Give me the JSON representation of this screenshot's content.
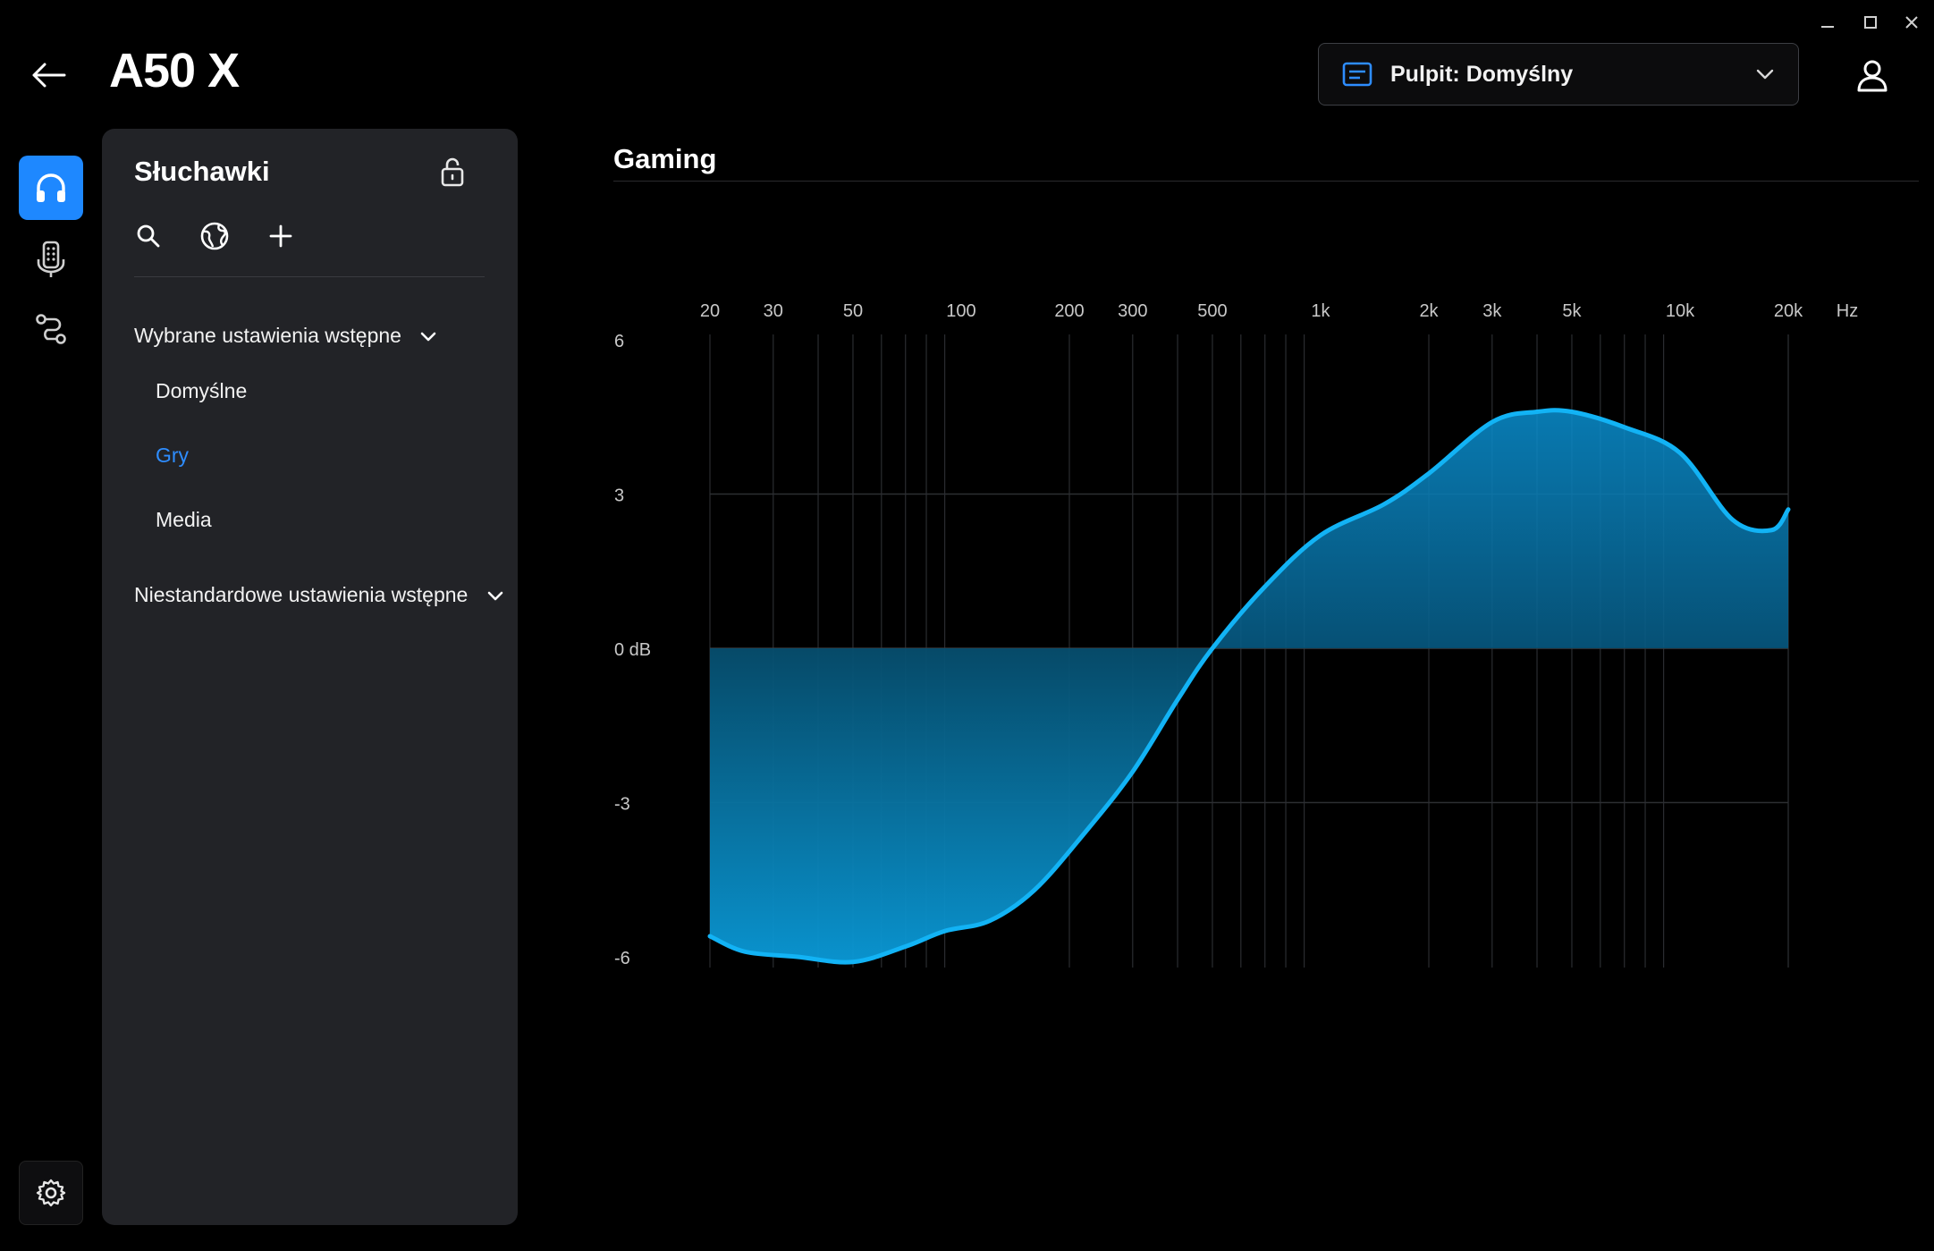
{
  "window": {
    "minimize_icon": "minimize-icon",
    "maximize_icon": "maximize-icon",
    "close_icon": "close-icon"
  },
  "header": {
    "title": "A50 X",
    "profile_label": "Pulpit: Domyślny"
  },
  "rail": {
    "items": [
      "headphones-icon",
      "microphone-icon",
      "routing-icon"
    ],
    "settings": "gear-icon"
  },
  "panel": {
    "title": "Słuchawki",
    "section_selected": "Wybrane ustawienia wstępne",
    "presets": [
      "Domyślne",
      "Gry",
      "Media"
    ],
    "active_preset": "Gry",
    "section_custom": "Niestandardowe ustawienia wstępne"
  },
  "main": {
    "title": "Gaming"
  },
  "colors": {
    "accent": "#1e88ff",
    "curve": "#12b3f5",
    "panel_bg": "#222327"
  },
  "chart_data": {
    "type": "area",
    "title": "Gaming",
    "xlabel": "Hz",
    "ylabel": "",
    "x_scale": "log",
    "xlim": [
      20,
      20000
    ],
    "ylim": [
      -6,
      6
    ],
    "x_ticks": [
      {
        "label": "20",
        "value": 20
      },
      {
        "label": "30",
        "value": 30
      },
      {
        "label": "50",
        "value": 50
      },
      {
        "label": "100",
        "value": 100
      },
      {
        "label": "200",
        "value": 200
      },
      {
        "label": "300",
        "value": 300
      },
      {
        "label": "500",
        "value": 500
      },
      {
        "label": "1k",
        "value": 1000
      },
      {
        "label": "2k",
        "value": 2000
      },
      {
        "label": "3k",
        "value": 3000
      },
      {
        "label": "5k",
        "value": 5000
      },
      {
        "label": "10k",
        "value": 10000
      },
      {
        "label": "20k",
        "value": 20000
      }
    ],
    "x_unit_label": "Hz",
    "y_ticks": [
      {
        "label": "6",
        "value": 6
      },
      {
        "label": "3",
        "value": 3
      },
      {
        "label": "0 dB",
        "value": 0
      },
      {
        "label": "-3",
        "value": -3
      },
      {
        "label": "-6",
        "value": -6
      }
    ],
    "grid": true,
    "series": [
      {
        "x": [
          20,
          25,
          35,
          50,
          70,
          90,
          120,
          160,
          220,
          300,
          400,
          500,
          700,
          1000,
          1500,
          2000,
          3000,
          4000,
          5000,
          7000,
          10000,
          14000,
          18000,
          20000
        ],
        "y": [
          -5.6,
          -5.9,
          -6.0,
          -6.1,
          -5.8,
          -5.5,
          -5.3,
          -4.7,
          -3.6,
          -2.4,
          -1.0,
          0.0,
          1.2,
          2.2,
          2.8,
          3.4,
          4.4,
          4.6,
          4.6,
          4.3,
          3.8,
          2.5,
          2.3,
          2.7
        ]
      }
    ]
  }
}
